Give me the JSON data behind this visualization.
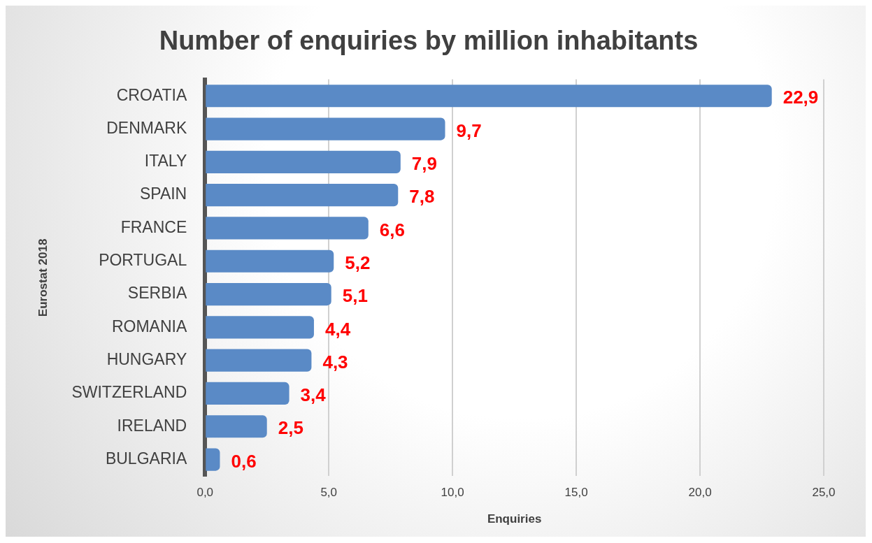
{
  "chart_data": {
    "type": "bar",
    "orientation": "horizontal",
    "title": "Number of enquiries by million inhabitants",
    "xlabel": "Enquiries",
    "ylabel": "Eurostat 2018",
    "categories": [
      "CROATIA",
      "DENMARK",
      "ITALY",
      "SPAIN",
      "FRANCE",
      "PORTUGAL",
      "SERBIA",
      "ROMANIA",
      "HUNGARY",
      "SWITZERLAND",
      "IRELAND",
      "BULGARIA"
    ],
    "values": [
      22.9,
      9.7,
      7.9,
      7.8,
      6.6,
      5.2,
      5.1,
      4.4,
      4.3,
      3.4,
      2.5,
      0.6
    ],
    "value_labels": [
      "22,9",
      "9,7",
      "7,9",
      "7,8",
      "6,6",
      "5,2",
      "5,1",
      "4,4",
      "4,3",
      "3,4",
      "2,5",
      "0,6"
    ],
    "color": "#5a8ac6",
    "xlim": [
      0,
      25
    ],
    "xticks": [
      {
        "value": 0,
        "label": "0,0"
      },
      {
        "value": 5,
        "label": "5,0"
      },
      {
        "value": 10,
        "label": "10,0"
      },
      {
        "value": 15,
        "label": "15,0"
      },
      {
        "value": 20,
        "label": "20,0"
      },
      {
        "value": 25,
        "label": "25,0"
      }
    ],
    "grid": "x",
    "legend": false
  }
}
